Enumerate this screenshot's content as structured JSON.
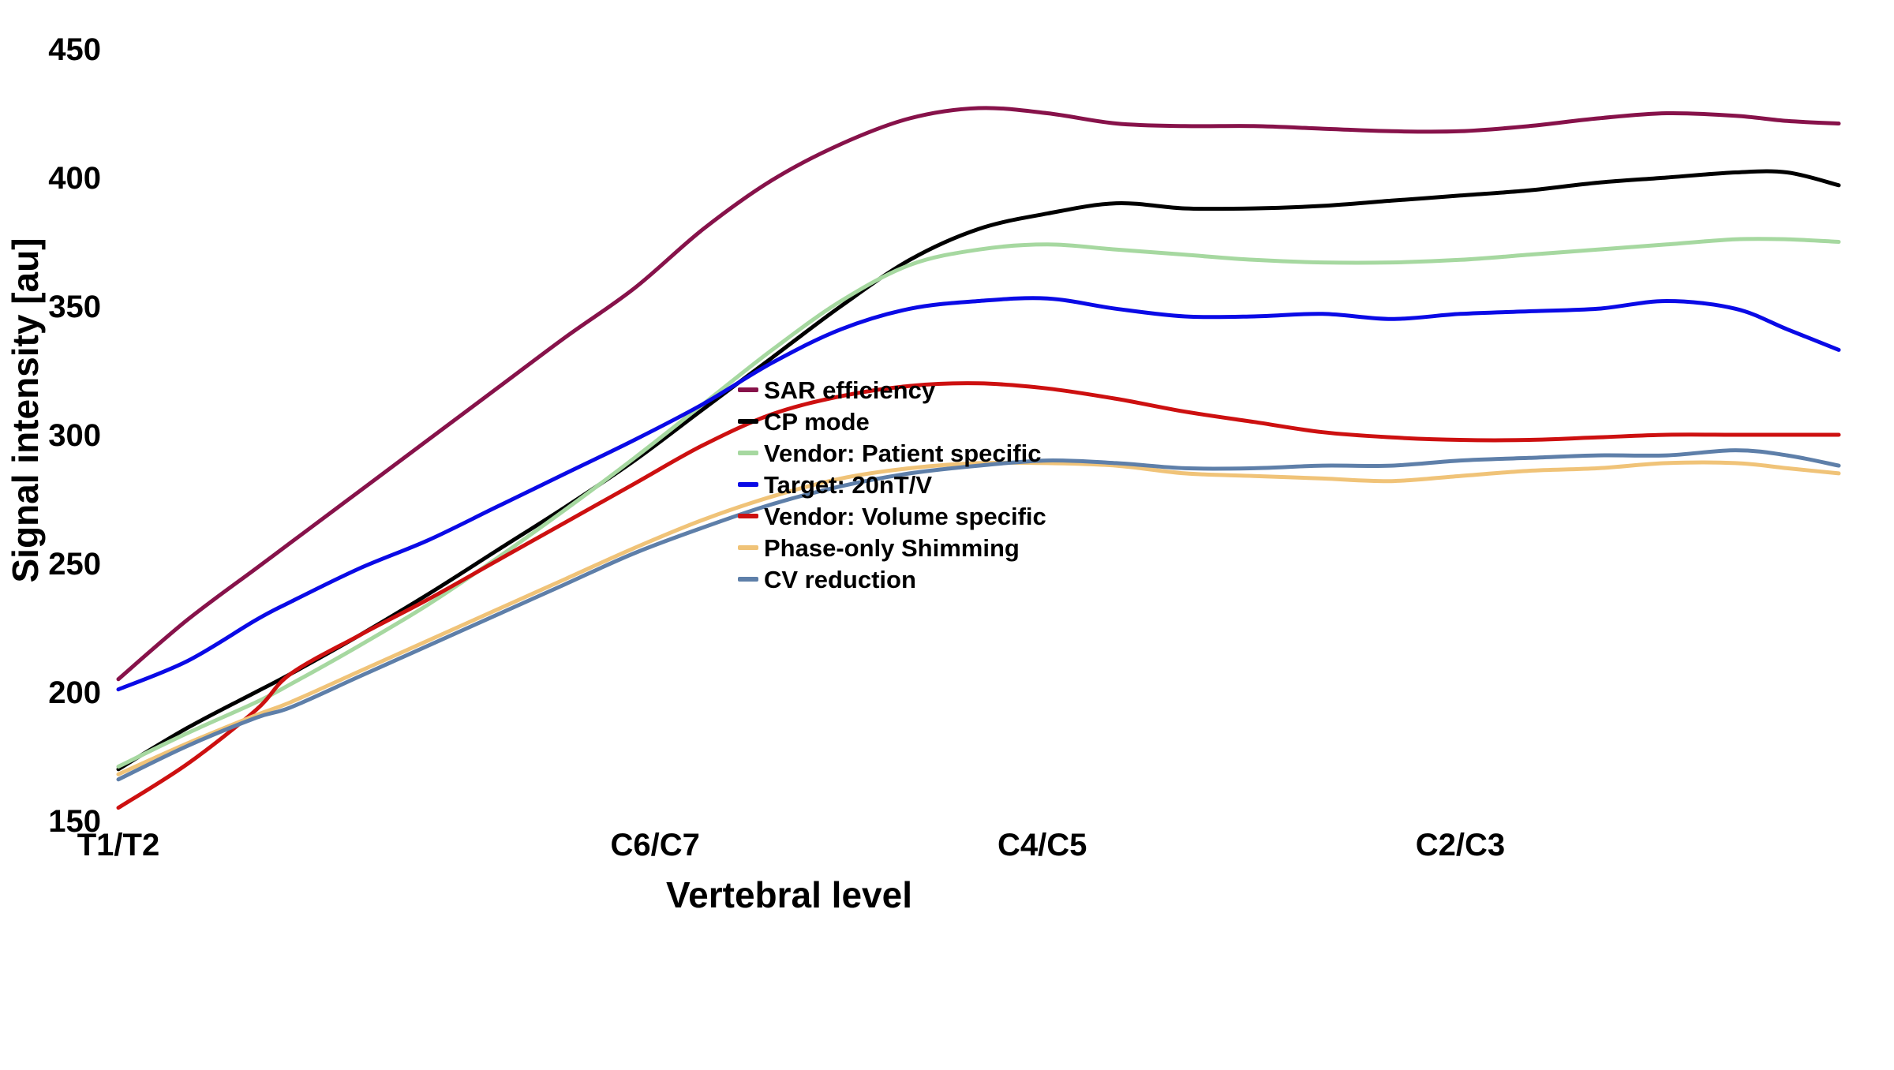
{
  "figure": {
    "background": "#ffffff",
    "text_color": "#000000"
  },
  "chart_data": {
    "type": "line",
    "title": "",
    "xlabel": "Vertebral level",
    "ylabel": "Signal intensity [au]",
    "ylim": [
      150,
      450
    ],
    "yticks": [
      450,
      400,
      350,
      300,
      250,
      200,
      150
    ],
    "xticks": [
      {
        "label": "T1/T2",
        "pos": 0.0
      },
      {
        "label": "C6/C7",
        "pos": 0.312
      },
      {
        "label": "C4/C5",
        "pos": 0.537
      },
      {
        "label": "C2/C3",
        "pos": 0.78
      }
    ],
    "grid": false,
    "legend_position": "center-right",
    "line_width": 5,
    "x": [
      0,
      0.04,
      0.08,
      0.1,
      0.14,
      0.18,
      0.22,
      0.26,
      0.3,
      0.34,
      0.38,
      0.42,
      0.46,
      0.5,
      0.54,
      0.58,
      0.62,
      0.66,
      0.7,
      0.74,
      0.78,
      0.82,
      0.86,
      0.9,
      0.94,
      0.97,
      1.0
    ],
    "series": [
      {
        "name": "SAR efficiency",
        "color": "#87124A",
        "values": [
          205,
          228,
          248,
          258,
          278,
          298,
          318,
          338,
          357,
          380,
          399,
          413,
          423,
          427,
          425,
          421,
          420,
          420,
          419,
          418,
          418,
          420,
          423,
          425,
          424,
          422,
          421
        ]
      },
      {
        "name": "CP mode",
        "color": "#000000",
        "values": [
          170,
          186,
          200,
          207,
          222,
          238,
          255,
          272,
          290,
          310,
          330,
          350,
          368,
          380,
          386,
          390,
          388,
          388,
          389,
          391,
          393,
          395,
          398,
          400,
          402,
          402,
          397
        ]
      },
      {
        "name": "Vendor: Patient specific",
        "color": "#A6D8A0",
        "values": [
          171,
          184,
          196,
          203,
          218,
          234,
          252,
          271,
          291,
          312,
          333,
          352,
          366,
          372,
          374,
          372,
          370,
          368,
          367,
          367,
          368,
          370,
          372,
          374,
          376,
          376,
          375
        ]
      },
      {
        "name": "Target: 20nT/V",
        "color": "#0A0AE6",
        "values": [
          201,
          212,
          228,
          235,
          248,
          259,
          272,
          285,
          298,
          312,
          328,
          341,
          349,
          352,
          353,
          349,
          346,
          346,
          347,
          345,
          347,
          348,
          349,
          352,
          349,
          341,
          333
        ]
      },
      {
        "name": "Vendor: Volume specific",
        "color": "#CD1010",
        "values": [
          155,
          172,
          193,
          207,
          222,
          236,
          251,
          266,
          281,
          296,
          308,
          315,
          319,
          320,
          318,
          314,
          309,
          305,
          301,
          299,
          298,
          298,
          299,
          300,
          300,
          300,
          300
        ]
      },
      {
        "name": "Phase-only Shimming",
        "color": "#F0C378",
        "values": [
          168,
          180,
          191,
          196,
          208,
          220,
          232,
          244,
          256,
          267,
          276,
          283,
          287,
          289,
          289,
          288,
          285,
          284,
          283,
          282,
          284,
          286,
          287,
          289,
          289,
          287,
          285
        ]
      },
      {
        "name": "CV reduction",
        "color": "#5E7FA9",
        "values": [
          166,
          179,
          190,
          194,
          206,
          218,
          230,
          242,
          254,
          264,
          273,
          280,
          285,
          288,
          290,
          289,
          287,
          287,
          288,
          288,
          290,
          291,
          292,
          292,
          294,
          292,
          288
        ]
      }
    ]
  }
}
